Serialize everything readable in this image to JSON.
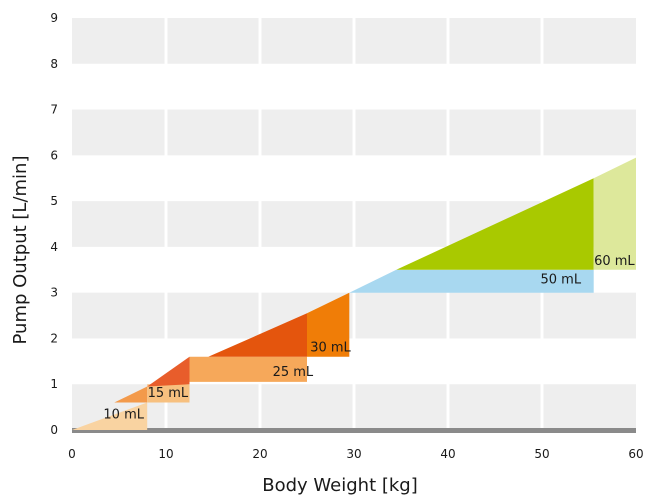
{
  "chart_data": {
    "type": "area",
    "xlabel": "Body Weight [kg]",
    "ylabel": "Pump Output [L/min]",
    "xlim": [
      0,
      60
    ],
    "ylim": [
      0,
      9
    ],
    "x_ticks": [
      "0",
      "10",
      "20",
      "30",
      "40",
      "50",
      "60"
    ],
    "y_ticks": [
      "0",
      "1",
      "2",
      "3",
      "4",
      "5",
      "6",
      "7",
      "8",
      "9"
    ],
    "grid": true,
    "zones": [
      {
        "label": "10 mL",
        "color": "#f9d3a1",
        "label_pos": [
          5.5,
          0.25
        ],
        "polygons": [
          {
            "color": "#f9d3a1",
            "points": [
              [
                0,
                0
              ],
              [
                8,
                0.6
              ],
              [
                8,
                0
              ]
            ]
          }
        ]
      },
      {
        "label": "15 mL",
        "color": "#f7c07f",
        "label_pos": [
          10.2,
          0.72
        ],
        "polygons": [
          {
            "color": "#f39a4b",
            "points": [
              [
                4.5,
                0.6
              ],
              [
                8,
                0.6
              ],
              [
                8,
                0.95
              ]
            ]
          },
          {
            "color": "#f7c07f",
            "points": [
              [
                8,
                0.6
              ],
              [
                8,
                1
              ],
              [
                12.5,
                1
              ],
              [
                12.5,
                0.6
              ]
            ]
          }
        ]
      },
      {
        "label": "25 mL",
        "color": "#f6a85a",
        "label_pos": [
          23.5,
          1.18
        ],
        "polygons": [
          {
            "color": "#e85d2b",
            "points": [
              [
                8,
                0.95
              ],
              [
                12.5,
                1.6
              ],
              [
                12.5,
                1
              ]
            ]
          },
          {
            "color": "#f6a85a",
            "points": [
              [
                12.5,
                1.05
              ],
              [
                12.5,
                1.6
              ],
              [
                25,
                1.6
              ],
              [
                25,
                1.05
              ]
            ]
          }
        ]
      },
      {
        "label": "30 mL",
        "color": "#f07d07",
        "label_pos": [
          27.5,
          1.72
        ],
        "polygons": [
          {
            "color": "#e4550d",
            "points": [
              [
                14.5,
                1.6
              ],
              [
                25,
                2.55
              ],
              [
                25,
                1.6
              ]
            ]
          },
          {
            "color": "#f07d07",
            "points": [
              [
                25,
                1.6
              ],
              [
                25,
                2.55
              ],
              [
                29.5,
                3.0
              ],
              [
                29.5,
                1.6
              ]
            ]
          }
        ]
      },
      {
        "label": "50 mL",
        "color": "#a8d8f0",
        "label_pos": [
          52,
          3.2
        ],
        "polygons": [
          {
            "color": "#a8d8f0",
            "points": [
              [
                29.5,
                3.0
              ],
              [
                55.5,
                3.0
              ],
              [
                55.5,
                3.5
              ],
              [
                34.5,
                3.5
              ]
            ]
          }
        ]
      },
      {
        "label": "60 mL",
        "color": "#dde89b",
        "label_pos": [
          57.7,
          3.6
        ],
        "polygons": [
          {
            "color": "#a9c900",
            "points": [
              [
                34.5,
                3.5
              ],
              [
                55.5,
                5.5
              ],
              [
                55.5,
                3.5
              ]
            ]
          },
          {
            "color": "#dde89b",
            "points": [
              [
                55.5,
                3.5
              ],
              [
                55.5,
                5.5
              ],
              [
                60,
                5.95
              ],
              [
                60,
                3.5
              ]
            ]
          }
        ]
      }
    ]
  }
}
